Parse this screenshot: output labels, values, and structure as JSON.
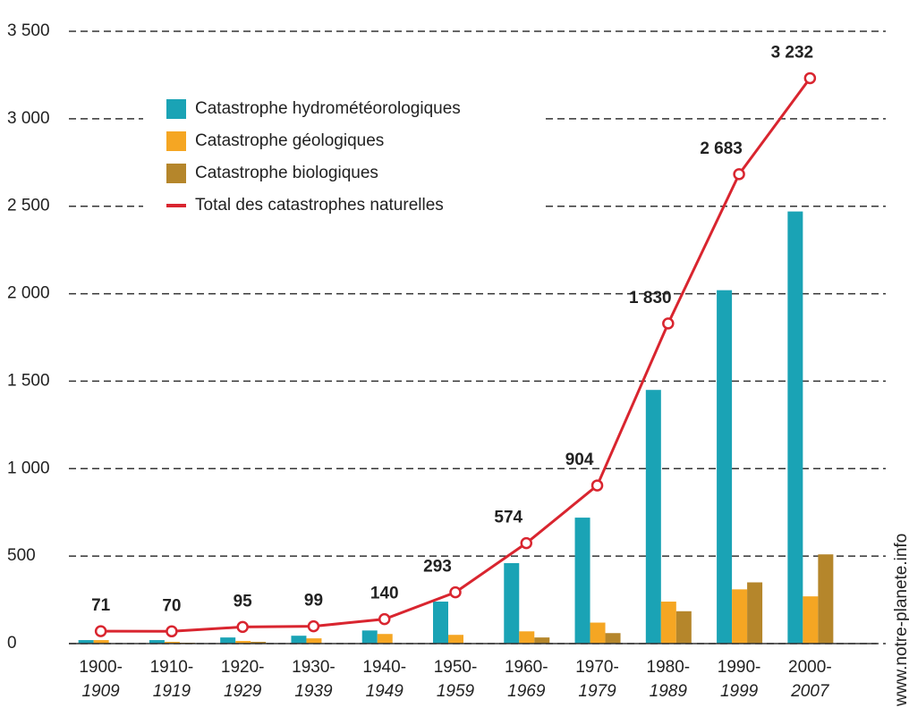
{
  "chart_data": {
    "type": "bar-line",
    "categories": [
      [
        "1900-",
        "1909"
      ],
      [
        "1910-",
        "1919"
      ],
      [
        "1920-",
        "1929"
      ],
      [
        "1930-",
        "1939"
      ],
      [
        "1940-",
        "1949"
      ],
      [
        "1950-",
        "1959"
      ],
      [
        "1960-",
        "1969"
      ],
      [
        "1970-",
        "1979"
      ],
      [
        "1980-",
        "1989"
      ],
      [
        "1990-",
        "1999"
      ],
      [
        "2000-",
        "2007"
      ]
    ],
    "series": [
      {
        "name": "Catastrophe hydrométéorologiques",
        "color": "#1aa3b5",
        "type": "bar",
        "values": [
          20,
          20,
          35,
          45,
          75,
          240,
          460,
          720,
          1450,
          2020,
          2470
        ]
      },
      {
        "name": "Catastrophe géologiques",
        "color": "#f5a623",
        "type": "bar",
        "values": [
          20,
          10,
          15,
          30,
          55,
          50,
          70,
          120,
          240,
          310,
          270
        ]
      },
      {
        "name": "Catastrophe biologiques",
        "color": "#b5862b",
        "type": "bar",
        "values": [
          0,
          5,
          10,
          0,
          0,
          0,
          35,
          60,
          185,
          350,
          510
        ]
      },
      {
        "name": "Total des catastrophes naturelles",
        "color": "#d9252f",
        "type": "line",
        "values": [
          71,
          70,
          95,
          99,
          140,
          293,
          574,
          904,
          1830,
          2683,
          3232
        ],
        "value_labels": [
          "71",
          "70",
          "95",
          "99",
          "140",
          "293",
          "574",
          "904",
          "1 830",
          "2 683",
          "3 232"
        ]
      }
    ],
    "ylim": [
      0,
      3500
    ],
    "yticks": [
      0,
      500,
      {
        "value": 1000,
        "label": "1 000"
      },
      {
        "value": 1500,
        "label": "1 500"
      },
      {
        "value": 2000,
        "label": "2 000"
      },
      {
        "value": 2500,
        "label": "2 500"
      },
      {
        "value": 3000,
        "label": "3 000"
      },
      {
        "value": 3500,
        "label": "3 500"
      }
    ],
    "grid": true,
    "legend": "upper left",
    "source": "www.notre-planete.info"
  }
}
